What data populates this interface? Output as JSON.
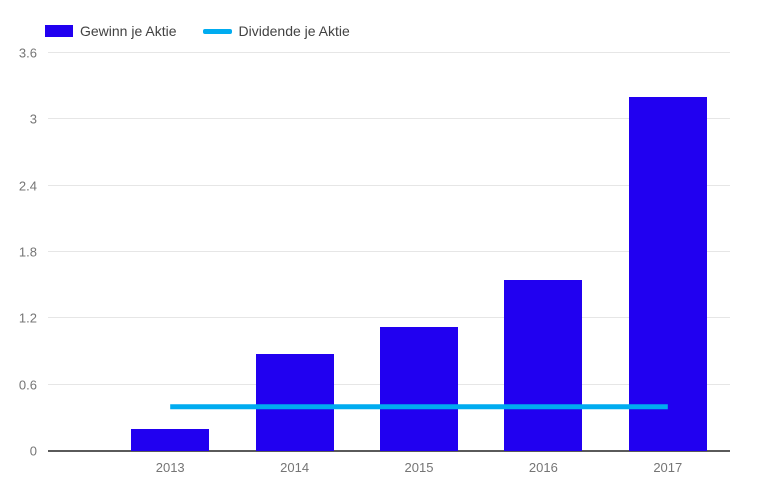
{
  "legend": {
    "items": [
      {
        "label": "Gewinn je Aktie",
        "swatch": "bar-swatch",
        "color": "#2100f0"
      },
      {
        "label": "Dividende je Aktie",
        "swatch": "line-swatch",
        "color": "#00acf0"
      }
    ]
  },
  "chart_data": {
    "type": "bar",
    "categories": [
      "2013",
      "2014",
      "2015",
      "2016",
      "2017"
    ],
    "series": [
      {
        "name": "Gewinn je Aktie",
        "type": "bar",
        "color": "#2100f0",
        "values": [
          0.2,
          0.88,
          1.12,
          1.55,
          3.2
        ]
      },
      {
        "name": "Dividende je Aktie",
        "type": "line",
        "color": "#00acf0",
        "values": [
          0.4,
          0.4,
          0.4,
          0.4,
          0.4
        ]
      }
    ],
    "title": "",
    "xlabel": "",
    "ylabel": "",
    "ylim": [
      0,
      3.6
    ],
    "yticks": [
      0,
      0.6,
      1.2,
      1.8,
      2.4,
      3,
      3.6
    ],
    "grid": true,
    "legend_position": "top",
    "colors": {
      "grid": "#e6e6e6",
      "axis": "#5a5a5a",
      "tick_text": "#757575",
      "legend_text": "#424242"
    }
  }
}
